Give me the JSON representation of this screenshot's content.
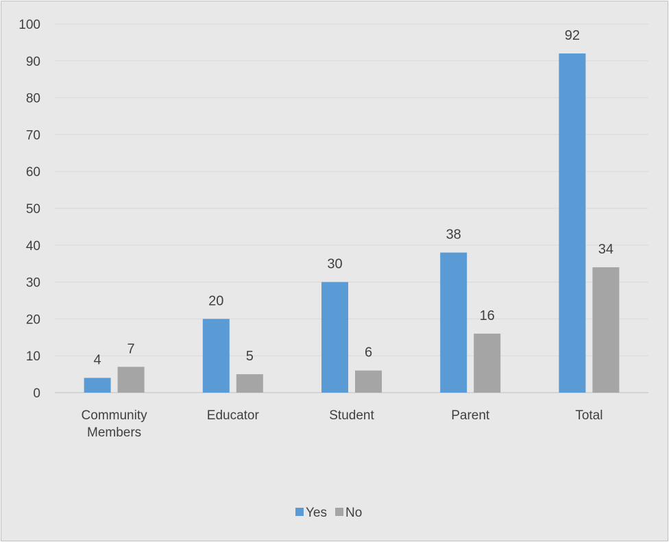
{
  "chart_data": {
    "type": "bar",
    "categories": [
      [
        "Community",
        "Members"
      ],
      [
        "Educator"
      ],
      [
        "Student"
      ],
      [
        "Parent"
      ],
      [
        "Total"
      ]
    ],
    "series": [
      {
        "name": "Yes",
        "values": [
          4,
          20,
          30,
          38,
          92
        ],
        "color": "#5b9bd5"
      },
      {
        "name": "No",
        "values": [
          7,
          5,
          6,
          16,
          34
        ],
        "color": "#a5a5a5"
      }
    ],
    "ylim": [
      0,
      100
    ],
    "yticks": [
      0,
      10,
      20,
      30,
      40,
      50,
      60,
      70,
      80,
      90,
      100
    ],
    "title": "",
    "xlabel": "",
    "ylabel": "",
    "grid": true,
    "legend_position": "bottom",
    "data_labels": true,
    "colors": {
      "background": "#e8e8e8",
      "gridline": "#d9d9d9",
      "axis": "#bfbfbf",
      "text": "#404040"
    }
  }
}
